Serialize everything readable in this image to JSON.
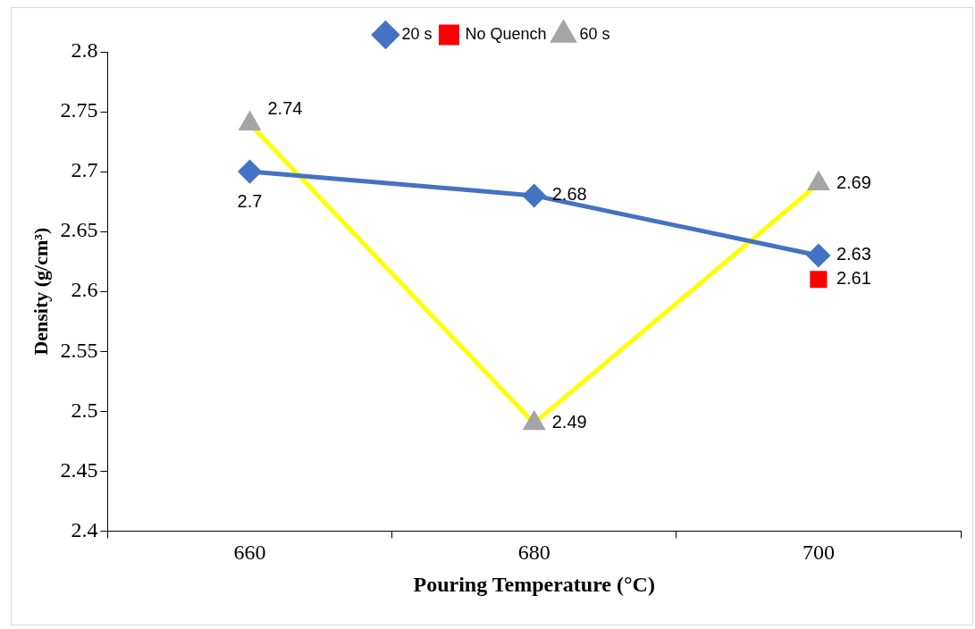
{
  "chart_data": {
    "type": "line",
    "xlabel": "Pouring Temperature (°C)",
    "ylabel": "Density (g/cm³)",
    "categories": [
      "660",
      "680",
      "700"
    ],
    "series": [
      {
        "name": "20 s",
        "color": "#4472c4",
        "marker": "diamond",
        "values": [
          2.7,
          2.68,
          2.63
        ]
      },
      {
        "name": "No Quench",
        "color": "#ff0000",
        "marker": "square",
        "values": [
          null,
          null,
          2.61
        ]
      },
      {
        "name": "60 s",
        "color": "#ffff00",
        "colors": [
          "#a5a5a5",
          "#a5a5a5",
          "#a5a5a5"
        ],
        "marker": "triangle",
        "values": [
          2.74,
          2.49,
          2.69
        ]
      }
    ],
    "ylim": [
      2.4,
      2.8
    ],
    "yticks": [
      2.4,
      2.45,
      2.5,
      2.55,
      2.6,
      2.65,
      2.7,
      2.75,
      2.8
    ],
    "grid": false,
    "legend": "top",
    "data_labels": true
  }
}
